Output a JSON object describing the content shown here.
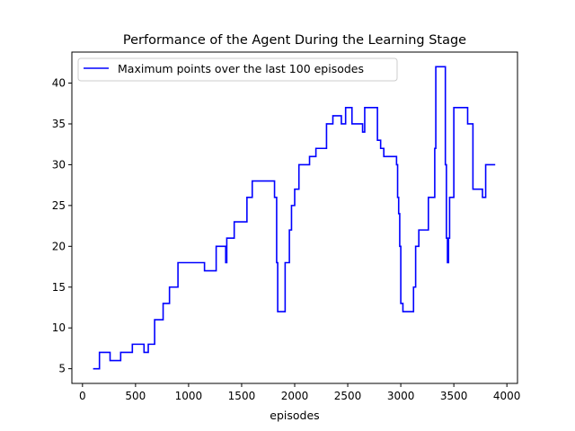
{
  "chart_data": {
    "type": "line",
    "title": "Performance of the Agent During the Learning Stage",
    "xlabel": "episodes",
    "ylabel": "",
    "xlim": [
      -100,
      4100
    ],
    "ylim": [
      3.2,
      43.8
    ],
    "xticks": [
      0,
      500,
      1000,
      1500,
      2000,
      2500,
      3000,
      3500,
      4000
    ],
    "yticks": [
      5,
      10,
      15,
      20,
      25,
      30,
      35,
      40
    ],
    "grid": false,
    "legend_position": "top-left",
    "series": [
      {
        "name": "Maximum points over the last 100 episodes",
        "color": "#0000ff",
        "step": true,
        "x": [
          100,
          160,
          260,
          360,
          470,
          580,
          620,
          680,
          760,
          820,
          900,
          950,
          980,
          1150,
          1260,
          1350,
          1360,
          1430,
          1550,
          1600,
          1620,
          1810,
          1830,
          1840,
          1860,
          1910,
          1950,
          1970,
          2000,
          2040,
          2060,
          2080,
          2140,
          2200,
          2300,
          2360,
          2440,
          2480,
          2540,
          2640,
          2660,
          2670,
          2690,
          2780,
          2810,
          2840,
          2870,
          2960,
          2970,
          2980,
          2990,
          3000,
          3020,
          3120,
          3140,
          3150,
          3170,
          3260,
          3320,
          3330,
          3340,
          3420,
          3430,
          3440,
          3450,
          3460,
          3500,
          3630,
          3680,
          3770,
          3800,
          3890
        ],
        "y": [
          5,
          7,
          6,
          7,
          8,
          7,
          8,
          11,
          13,
          15,
          18,
          18,
          18,
          17,
          20,
          18,
          21,
          23,
          26,
          28,
          28,
          26,
          18,
          12,
          12,
          18,
          22,
          25,
          27,
          30,
          30,
          30,
          31,
          32,
          35,
          36,
          35,
          37,
          35,
          34,
          37,
          37,
          37,
          33,
          32,
          31,
          31,
          30,
          26,
          24,
          20,
          13,
          12,
          15,
          20,
          20,
          22,
          26,
          32,
          42,
          42,
          30,
          21,
          18,
          21,
          26,
          37,
          35,
          27,
          26,
          30,
          30
        ]
      }
    ]
  }
}
